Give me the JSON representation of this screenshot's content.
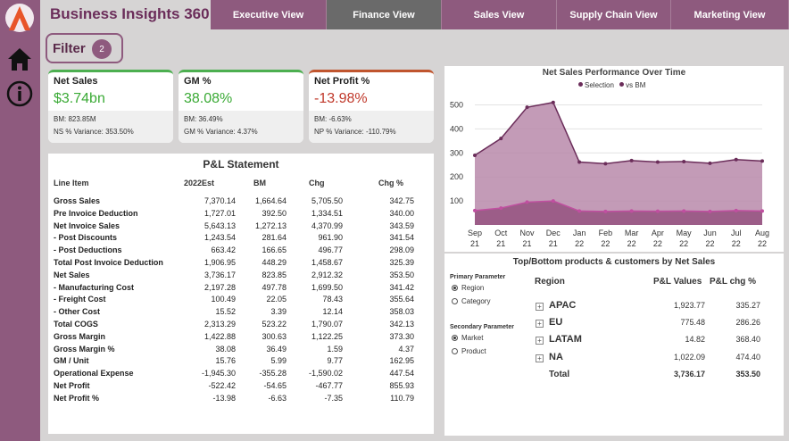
{
  "app_title": "Business Insights 360",
  "tabs": [
    "Executive View",
    "Finance View",
    "Sales View",
    "Supply Chain View",
    "Marketing View"
  ],
  "active_tab": "Finance View",
  "filter": {
    "label": "Filter",
    "count": "2"
  },
  "kpis": [
    {
      "title": "Net Sales",
      "value": "$3.74bn",
      "line1": "BM: 823.85M",
      "line2": "NS % Variance: 353.50%"
    },
    {
      "title": "GM %",
      "value": "38.08%",
      "line1": "BM: 36.49%",
      "line2": "GM % Variance: 4.37%"
    },
    {
      "title": "Net Profit %",
      "value": "-13.98%",
      "line1": "BM: -6.63%",
      "line2": "NP % Variance: -110.79%"
    }
  ],
  "pl": {
    "title": "P&L Statement",
    "headers": [
      "Line Item",
      "2022Est",
      "BM",
      "Chg",
      "Chg %"
    ],
    "rows": [
      [
        "Gross Sales",
        "7,370.14",
        "1,664.64",
        "5,705.50",
        "342.75"
      ],
      [
        "Pre Invoice Deduction",
        "1,727.01",
        "392.50",
        "1,334.51",
        "340.00"
      ],
      [
        "Net Invoice Sales",
        "5,643.13",
        "1,272.13",
        "4,370.99",
        "343.59"
      ],
      [
        "- Post Discounts",
        "1,243.54",
        "281.64",
        "961.90",
        "341.54"
      ],
      [
        "- Post Deductions",
        "663.42",
        "166.65",
        "496.77",
        "298.09"
      ],
      [
        "Total Post Invoice Deduction",
        "1,906.95",
        "448.29",
        "1,458.67",
        "325.39"
      ],
      [
        "Net Sales",
        "3,736.17",
        "823.85",
        "2,912.32",
        "353.50"
      ],
      [
        "- Manufacturing Cost",
        "2,197.28",
        "497.78",
        "1,699.50",
        "341.42"
      ],
      [
        "- Freight Cost",
        "100.49",
        "22.05",
        "78.43",
        "355.64"
      ],
      [
        "- Other Cost",
        "15.52",
        "3.39",
        "12.14",
        "358.03"
      ],
      [
        "Total COGS",
        "2,313.29",
        "523.22",
        "1,790.07",
        "342.13"
      ],
      [
        "Gross Margin",
        "1,422.88",
        "300.63",
        "1,122.25",
        "373.30"
      ],
      [
        "Gross Margin %",
        "38.08",
        "36.49",
        "1.59",
        "4.37"
      ],
      [
        "GM / Unit",
        "15.76",
        "5.99",
        "9.77",
        "162.95"
      ],
      [
        "Operational Expense",
        "-1,945.30",
        "-355.28",
        "-1,590.02",
        "447.54"
      ],
      [
        "Net Profit",
        "-522.42",
        "-54.65",
        "-467.77",
        "855.93"
      ],
      [
        "Net Profit %",
        "-13.98",
        "-6.63",
        "-7.35",
        "110.79"
      ]
    ]
  },
  "chart_data": {
    "type": "area",
    "title": "Net Sales Performance Over Time",
    "legend": [
      "Selection",
      "vs BM"
    ],
    "legend_position": "top",
    "categories": [
      "Sep 21",
      "Oct 21",
      "Nov 21",
      "Dec 21",
      "Jan 22",
      "Feb 22",
      "Mar 22",
      "Apr 22",
      "May 22",
      "Jun 22",
      "Jul 22",
      "Aug 22"
    ],
    "series": [
      {
        "name": "Selection",
        "values": [
          290,
          360,
          490,
          510,
          262,
          255,
          268,
          262,
          264,
          257,
          272,
          266
        ]
      },
      {
        "name": "vs BM",
        "values": [
          60,
          70,
          95,
          100,
          58,
          56,
          58,
          57,
          58,
          56,
          60,
          58
        ]
      }
    ],
    "yticks": [
      100,
      200,
      300,
      400,
      500
    ],
    "ylim": [
      0,
      550
    ],
    "colors": {
      "selection_fill": "#b88aaa",
      "selection_line": "#6b2d5a",
      "bm_fill": "#9c5d88"
    }
  },
  "topbottom": {
    "title": "Top/Bottom products & customers by Net Sales",
    "primary_label": "Primary Parameter",
    "primary_options": [
      "Region",
      "Category"
    ],
    "secondary_label": "Secondary Parameter",
    "secondary_options": [
      "Market",
      "Product"
    ],
    "headers": [
      "Region",
      "P&L Values",
      "P&L chg %"
    ],
    "rows": [
      [
        "APAC",
        "1,923.77",
        "335.27"
      ],
      [
        "EU",
        "775.48",
        "286.26"
      ],
      [
        "LATAM",
        "14.82",
        "368.40"
      ],
      [
        "NA",
        "1,022.09",
        "474.40"
      ]
    ],
    "total": [
      "Total",
      "3,736.17",
      "353.50"
    ]
  }
}
